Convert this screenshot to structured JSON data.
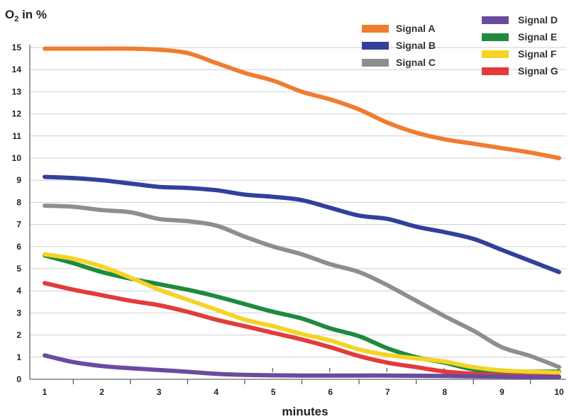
{
  "chart_data": {
    "type": "line",
    "title": "",
    "ylabel_main": "O",
    "ylabel_sub": "2",
    "ylabel_rest": " in %",
    "xlabel": "minutes",
    "xlim": [
      1,
      10
    ],
    "ylim": [
      0,
      15
    ],
    "x_ticks": [
      1,
      2,
      3,
      4,
      5,
      6,
      7,
      8,
      9,
      10
    ],
    "y_ticks": [
      0,
      1,
      2,
      3,
      4,
      5,
      6,
      7,
      8,
      9,
      10,
      11,
      12,
      13,
      14,
      15
    ],
    "grid": "horizontal",
    "legend_position": "top-right",
    "x": [
      1,
      1.5,
      2,
      2.5,
      3,
      3.5,
      4,
      4.5,
      5,
      5.5,
      6,
      6.5,
      7,
      7.5,
      8,
      8.5,
      9,
      9.5,
      10
    ],
    "series": [
      {
        "name": "Signal A",
        "color": "#f07c30",
        "values": [
          14.95,
          14.95,
          14.95,
          14.95,
          14.9,
          14.75,
          14.3,
          13.85,
          13.5,
          13.0,
          12.65,
          12.2,
          11.6,
          11.15,
          10.85,
          10.65,
          10.45,
          10.25,
          10.0
        ]
      },
      {
        "name": "Signal B",
        "color": "#33409a",
        "values": [
          9.15,
          9.1,
          9.0,
          8.85,
          8.7,
          8.65,
          8.55,
          8.35,
          8.25,
          8.1,
          7.75,
          7.4,
          7.25,
          6.9,
          6.65,
          6.35,
          5.85,
          5.35,
          4.85
        ]
      },
      {
        "name": "Signal C",
        "color": "#8e8e8e",
        "values": [
          7.85,
          7.8,
          7.65,
          7.55,
          7.25,
          7.15,
          6.95,
          6.45,
          6.0,
          5.65,
          5.2,
          4.85,
          4.25,
          3.55,
          2.85,
          2.2,
          1.45,
          1.05,
          0.55
        ]
      },
      {
        "name": "Signal D",
        "color": "#6a4ba0",
        "values": [
          1.08,
          0.78,
          0.6,
          0.5,
          0.42,
          0.34,
          0.25,
          0.2,
          0.18,
          0.17,
          0.17,
          0.17,
          0.17,
          0.16,
          0.15,
          0.13,
          0.12,
          0.11,
          0.1
        ]
      },
      {
        "name": "Signal E",
        "color": "#1e8a3e",
        "values": [
          5.6,
          5.25,
          4.85,
          4.55,
          4.3,
          4.05,
          3.75,
          3.4,
          3.05,
          2.75,
          2.3,
          1.95,
          1.4,
          1.0,
          0.75,
          0.45,
          0.35,
          0.35,
          0.35
        ]
      },
      {
        "name": "Signal F",
        "color": "#f5d327",
        "values": [
          5.65,
          5.45,
          5.1,
          4.6,
          4.05,
          3.6,
          3.15,
          2.7,
          2.4,
          2.05,
          1.75,
          1.35,
          1.1,
          0.95,
          0.8,
          0.55,
          0.4,
          0.35,
          0.3
        ]
      },
      {
        "name": "Signal G",
        "color": "#e33b3b",
        "values": [
          4.35,
          4.05,
          3.8,
          3.55,
          3.35,
          3.05,
          2.7,
          2.4,
          2.1,
          1.8,
          1.45,
          1.05,
          0.75,
          0.55,
          0.35,
          0.25,
          0.18,
          0.15,
          0.12
        ]
      }
    ],
    "legend_columns": [
      [
        "Signal A",
        "Signal B",
        "Signal C"
      ],
      [
        "Signal D",
        "Signal E",
        "Signal F",
        "Signal G"
      ]
    ]
  }
}
